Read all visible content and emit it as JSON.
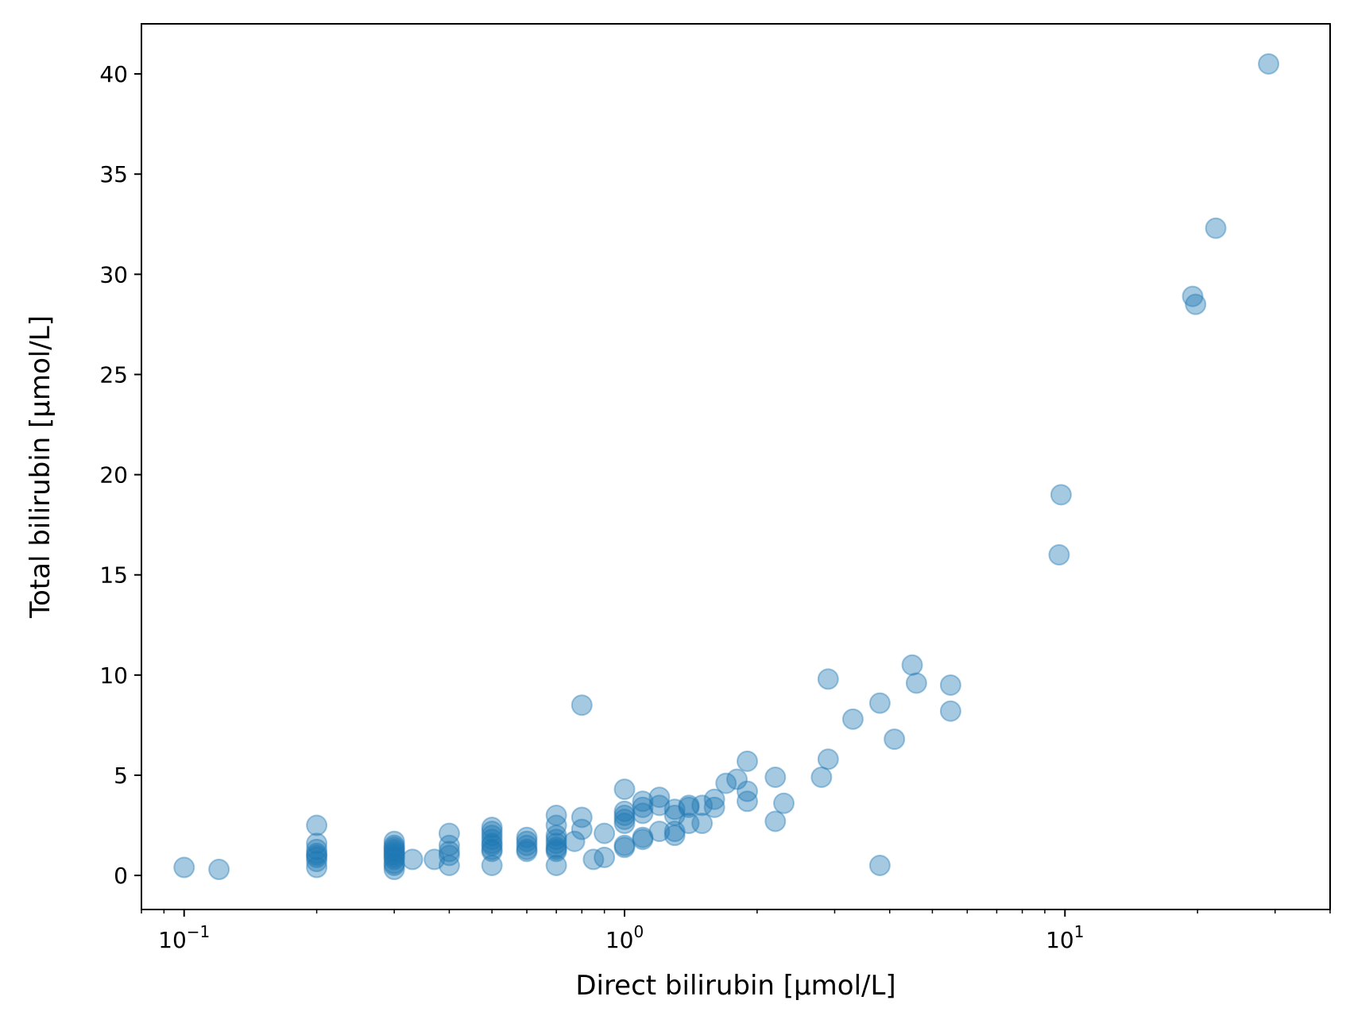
{
  "chart_data": {
    "type": "scatter",
    "title": "",
    "xlabel": "Direct bilirubin [µmol/L]",
    "ylabel": "Total bilirubin [µmol/L]",
    "xscale": "log",
    "xlim": [
      0.08,
      40
    ],
    "ylim": [
      -1.7,
      42.5
    ],
    "x_ticks": [
      {
        "value": 0.1,
        "base": "10",
        "exp": "−1"
      },
      {
        "value": 1,
        "base": "10",
        "exp": "0"
      },
      {
        "value": 10,
        "base": "10",
        "exp": "1"
      }
    ],
    "y_ticks": [
      0,
      5,
      10,
      15,
      20,
      25,
      30,
      35,
      40
    ],
    "grid": false,
    "legend": "none",
    "marker_color": "#1f77b4",
    "marker_alpha": 0.4,
    "points": [
      {
        "x": 0.1,
        "y": 0.4
      },
      {
        "x": 0.12,
        "y": 0.3
      },
      {
        "x": 0.2,
        "y": 2.5
      },
      {
        "x": 0.2,
        "y": 1.6
      },
      {
        "x": 0.2,
        "y": 1.3
      },
      {
        "x": 0.2,
        "y": 1.1
      },
      {
        "x": 0.2,
        "y": 1.0
      },
      {
        "x": 0.2,
        "y": 0.9
      },
      {
        "x": 0.2,
        "y": 0.7
      },
      {
        "x": 0.2,
        "y": 0.4
      },
      {
        "x": 0.3,
        "y": 1.7
      },
      {
        "x": 0.3,
        "y": 1.5
      },
      {
        "x": 0.3,
        "y": 1.4
      },
      {
        "x": 0.3,
        "y": 1.3
      },
      {
        "x": 0.3,
        "y": 1.2
      },
      {
        "x": 0.3,
        "y": 1.1
      },
      {
        "x": 0.3,
        "y": 1.0
      },
      {
        "x": 0.3,
        "y": 0.9
      },
      {
        "x": 0.3,
        "y": 0.8
      },
      {
        "x": 0.3,
        "y": 0.6
      },
      {
        "x": 0.3,
        "y": 0.5
      },
      {
        "x": 0.3,
        "y": 0.3
      },
      {
        "x": 0.33,
        "y": 0.8
      },
      {
        "x": 0.37,
        "y": 0.8
      },
      {
        "x": 0.4,
        "y": 2.1
      },
      {
        "x": 0.4,
        "y": 1.5
      },
      {
        "x": 0.4,
        "y": 1.2
      },
      {
        "x": 0.4,
        "y": 1.0
      },
      {
        "x": 0.4,
        "y": 0.5
      },
      {
        "x": 0.5,
        "y": 2.4
      },
      {
        "x": 0.5,
        "y": 2.2
      },
      {
        "x": 0.5,
        "y": 2.0
      },
      {
        "x": 0.5,
        "y": 1.8
      },
      {
        "x": 0.5,
        "y": 1.6
      },
      {
        "x": 0.5,
        "y": 1.5
      },
      {
        "x": 0.5,
        "y": 1.3
      },
      {
        "x": 0.5,
        "y": 1.2
      },
      {
        "x": 0.5,
        "y": 0.5
      },
      {
        "x": 0.6,
        "y": 1.9
      },
      {
        "x": 0.6,
        "y": 1.7
      },
      {
        "x": 0.6,
        "y": 1.5
      },
      {
        "x": 0.6,
        "y": 1.3
      },
      {
        "x": 0.6,
        "y": 1.2
      },
      {
        "x": 0.7,
        "y": 3.0
      },
      {
        "x": 0.7,
        "y": 2.5
      },
      {
        "x": 0.7,
        "y": 2.0
      },
      {
        "x": 0.7,
        "y": 1.8
      },
      {
        "x": 0.7,
        "y": 1.6
      },
      {
        "x": 0.7,
        "y": 1.4
      },
      {
        "x": 0.7,
        "y": 1.3
      },
      {
        "x": 0.7,
        "y": 1.2
      },
      {
        "x": 0.7,
        "y": 0.5
      },
      {
        "x": 0.77,
        "y": 1.7
      },
      {
        "x": 0.8,
        "y": 8.5
      },
      {
        "x": 0.8,
        "y": 2.9
      },
      {
        "x": 0.8,
        "y": 2.3
      },
      {
        "x": 0.85,
        "y": 0.8
      },
      {
        "x": 0.9,
        "y": 2.1
      },
      {
        "x": 0.9,
        "y": 0.9
      },
      {
        "x": 1.0,
        "y": 4.3
      },
      {
        "x": 1.0,
        "y": 3.2
      },
      {
        "x": 1.0,
        "y": 3.0
      },
      {
        "x": 1.0,
        "y": 2.8
      },
      {
        "x": 1.0,
        "y": 2.6
      },
      {
        "x": 1.0,
        "y": 1.5
      },
      {
        "x": 1.0,
        "y": 1.4
      },
      {
        "x": 1.1,
        "y": 3.7
      },
      {
        "x": 1.1,
        "y": 3.4
      },
      {
        "x": 1.1,
        "y": 3.1
      },
      {
        "x": 1.1,
        "y": 1.9
      },
      {
        "x": 1.1,
        "y": 1.8
      },
      {
        "x": 1.2,
        "y": 3.9
      },
      {
        "x": 1.2,
        "y": 3.5
      },
      {
        "x": 1.2,
        "y": 2.2
      },
      {
        "x": 1.3,
        "y": 3.3
      },
      {
        "x": 1.3,
        "y": 3.0
      },
      {
        "x": 1.3,
        "y": 2.2
      },
      {
        "x": 1.3,
        "y": 2.0
      },
      {
        "x": 1.4,
        "y": 3.5
      },
      {
        "x": 1.4,
        "y": 3.4
      },
      {
        "x": 1.4,
        "y": 2.6
      },
      {
        "x": 1.5,
        "y": 3.5
      },
      {
        "x": 1.5,
        "y": 2.6
      },
      {
        "x": 1.6,
        "y": 3.8
      },
      {
        "x": 1.6,
        "y": 3.4
      },
      {
        "x": 1.7,
        "y": 4.6
      },
      {
        "x": 1.8,
        "y": 4.8
      },
      {
        "x": 1.9,
        "y": 5.7
      },
      {
        "x": 1.9,
        "y": 4.2
      },
      {
        "x": 1.9,
        "y": 3.7
      },
      {
        "x": 2.2,
        "y": 4.9
      },
      {
        "x": 2.2,
        "y": 2.7
      },
      {
        "x": 2.3,
        "y": 3.6
      },
      {
        "x": 2.8,
        "y": 4.9
      },
      {
        "x": 2.9,
        "y": 9.8
      },
      {
        "x": 2.9,
        "y": 5.8
      },
      {
        "x": 3.3,
        "y": 7.8
      },
      {
        "x": 3.8,
        "y": 8.6
      },
      {
        "x": 3.8,
        "y": 0.5
      },
      {
        "x": 4.1,
        "y": 6.8
      },
      {
        "x": 4.5,
        "y": 10.5
      },
      {
        "x": 4.6,
        "y": 9.6
      },
      {
        "x": 5.5,
        "y": 9.5
      },
      {
        "x": 5.5,
        "y": 8.2
      },
      {
        "x": 9.7,
        "y": 16.0
      },
      {
        "x": 9.8,
        "y": 19.0
      },
      {
        "x": 19.5,
        "y": 28.9
      },
      {
        "x": 19.8,
        "y": 28.5
      },
      {
        "x": 22.0,
        "y": 32.3
      },
      {
        "x": 29.0,
        "y": 40.5
      }
    ]
  }
}
